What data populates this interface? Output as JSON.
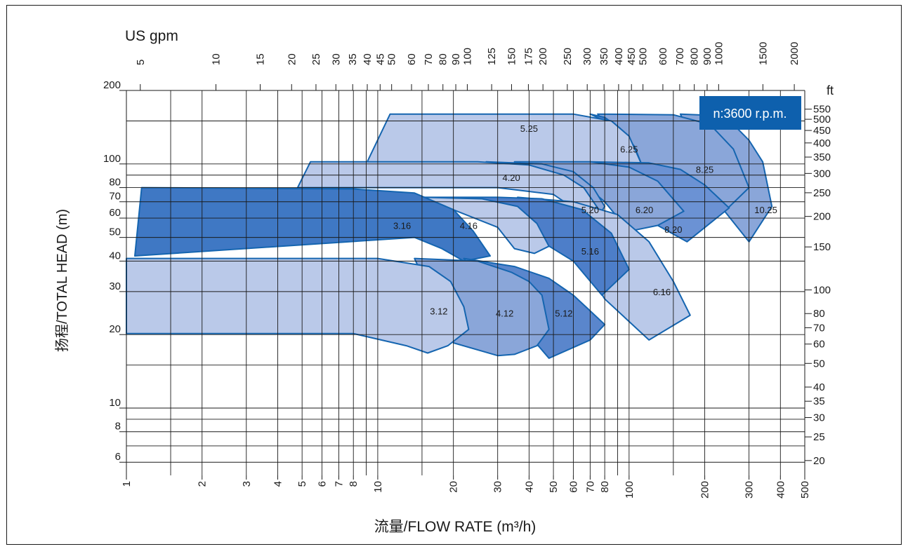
{
  "chart_data": {
    "type": "area",
    "xlabel": "流量/FLOW RATE (m³/h)",
    "ylabel": "扬程/TOTAL HEAD (m)",
    "x_scale": "log",
    "y_scale": "log",
    "xlim": [
      1,
      500
    ],
    "ylim": [
      5.3,
      200
    ],
    "x_ticks": [
      "1",
      "2",
      "3",
      "4",
      "5",
      "6",
      "7",
      "8",
      "10",
      "20",
      "30",
      "40",
      "50",
      "60",
      "70",
      "80",
      "100",
      "200",
      "300",
      "400",
      "500"
    ],
    "y_ticks": [
      "6",
      "8",
      "10",
      "20",
      "30",
      "40",
      "50",
      "60",
      "70",
      "80",
      "100",
      "200"
    ],
    "top_axis": {
      "label": "US gpm",
      "ticks": [
        "5",
        "10",
        "15",
        "20",
        "25",
        "30",
        "35",
        "40",
        "45",
        "50",
        "60",
        "70",
        "80",
        "90",
        "100",
        "125",
        "150",
        "175",
        "200",
        "250",
        "300",
        "350",
        "400",
        "450",
        "500",
        "600",
        "700",
        "800",
        "900",
        "1000",
        "1500",
        "2000"
      ]
    },
    "right_axis": {
      "label": "ft",
      "ticks": [
        "550",
        "500",
        "450",
        "400",
        "350",
        "300",
        "250",
        "200",
        "150",
        "100",
        "80",
        "70",
        "60",
        "50",
        "40",
        "35",
        "30",
        "25",
        "20"
      ]
    },
    "badge": "n:3600 r.p.m.",
    "grid": true,
    "series": [
      {
        "name": "10.25",
        "label_at": [
          350,
          65
        ],
        "color": "#8aa6d9",
        "outline": [
          [
            160,
            160
          ],
          [
            215,
            158
          ],
          [
            260,
            145
          ],
          [
            300,
            125
          ],
          [
            340,
            102
          ],
          [
            370,
            67
          ],
          [
            300,
            48
          ],
          [
            240,
            64
          ]
        ]
      },
      {
        "name": "8.25",
        "label_at": [
          200,
          95
        ],
        "color": "#8aa6d9",
        "outline": [
          [
            75,
            160
          ],
          [
            150,
            159
          ],
          [
            210,
            145
          ],
          [
            260,
            115
          ],
          [
            300,
            80
          ],
          [
            240,
            64
          ],
          [
            185,
            55
          ],
          [
            140,
            75
          ],
          [
            110,
            100
          ],
          [
            90,
            125
          ]
        ]
      },
      {
        "name": "6.25",
        "label_at": [
          100,
          115
        ],
        "color": "#4d7ec9",
        "outline": [
          [
            70,
            160
          ],
          [
            80,
            155
          ],
          [
            92,
            140
          ],
          [
            105,
            118
          ],
          [
            112,
            100
          ],
          [
            102,
            92
          ],
          [
            95,
            105
          ],
          [
            80,
            150
          ]
        ]
      },
      {
        "name": "5.25",
        "label_at": [
          40,
          140
        ],
        "color": "#bac9e9",
        "outline": [
          [
            11.2,
            160
          ],
          [
            60,
            160
          ],
          [
            85,
            150
          ],
          [
            100,
            130
          ],
          [
            112,
            100
          ],
          [
            80,
            100
          ],
          [
            60,
            100
          ],
          [
            9,
            100
          ]
        ]
      },
      {
        "name": "8.20",
        "label_at": [
          150,
          54
        ],
        "color": "#6b92d4",
        "outline": [
          [
            70,
            102
          ],
          [
            120,
            101
          ],
          [
            160,
            95
          ],
          [
            200,
            82
          ],
          [
            250,
            66
          ],
          [
            170,
            48
          ],
          [
            130,
            56
          ],
          [
            110,
            70
          ]
        ]
      },
      {
        "name": "6.20",
        "label_at": [
          115,
          65
        ],
        "color": "#8aa6d9",
        "outline": [
          [
            35,
            102
          ],
          [
            70,
            102
          ],
          [
            100,
            97
          ],
          [
            130,
            85
          ],
          [
            165,
            64
          ],
          [
            130,
            56
          ],
          [
            100,
            53
          ],
          [
            80,
            70
          ],
          [
            60,
            90
          ]
        ]
      },
      {
        "name": "5.20",
        "label_at": [
          70,
          65
        ],
        "color": "#8aa6d9",
        "outline": [
          [
            27,
            102
          ],
          [
            45,
            100
          ],
          [
            60,
            93
          ],
          [
            72,
            80
          ],
          [
            80,
            67
          ],
          [
            75,
            60
          ],
          [
            68,
            63
          ],
          [
            60,
            78
          ],
          [
            50,
            92
          ]
        ]
      },
      {
        "name": "4.20",
        "label_at": [
          34,
          88
        ],
        "color": "#bac9e9",
        "outline": [
          [
            5.4,
            102
          ],
          [
            25,
            102
          ],
          [
            40,
            99
          ],
          [
            55,
            90
          ],
          [
            66,
            80
          ],
          [
            75,
            66
          ],
          [
            65,
            60
          ],
          [
            60,
            66
          ],
          [
            50,
            75
          ],
          [
            30,
            80
          ],
          [
            4.8,
            80
          ]
        ]
      },
      {
        "name": "6.16",
        "label_at": [
          135,
          30
        ],
        "color": "#bac9e9",
        "outline": [
          [
            36,
            73
          ],
          [
            60,
            70
          ],
          [
            90,
            62
          ],
          [
            120,
            48
          ],
          [
            150,
            33
          ],
          [
            175,
            24
          ],
          [
            120,
            19
          ],
          [
            80,
            28
          ],
          [
            60,
            45
          ],
          [
            45,
            60
          ]
        ]
      },
      {
        "name": "5.16",
        "label_at": [
          70,
          44
        ],
        "color": "#4d7ec9",
        "outline": [
          [
            15,
            73
          ],
          [
            30,
            73
          ],
          [
            45,
            72
          ],
          [
            65,
            65
          ],
          [
            85,
            52
          ],
          [
            100,
            37
          ],
          [
            78,
            29
          ],
          [
            60,
            40
          ],
          [
            45,
            48
          ]
        ]
      },
      {
        "name": "4.16",
        "label_at": [
          23,
          56
        ],
        "color": "#bac9e9",
        "outline": [
          [
            15,
            73
          ],
          [
            26,
            72
          ],
          [
            36,
            67
          ],
          [
            43,
            57
          ],
          [
            48,
            46
          ],
          [
            42,
            43
          ],
          [
            35,
            45
          ],
          [
            30,
            55
          ]
        ]
      },
      {
        "name": "3.16",
        "label_at": [
          12.5,
          56
        ],
        "color": "#3f78c4",
        "outline": [
          [
            1.15,
            80
          ],
          [
            8,
            79
          ],
          [
            14,
            76
          ],
          [
            20,
            65
          ],
          [
            24,
            53
          ],
          [
            28,
            42
          ],
          [
            22,
            40
          ],
          [
            18,
            45
          ],
          [
            14,
            50
          ],
          [
            1.08,
            42
          ]
        ]
      },
      {
        "name": "5.12",
        "label_at": [
          55,
          24.5
        ],
        "color": "#5a86cc",
        "outline": [
          [
            22,
            41
          ],
          [
            35,
            38
          ],
          [
            48,
            34
          ],
          [
            60,
            29
          ],
          [
            70,
            25
          ],
          [
            80,
            22
          ],
          [
            70,
            19
          ],
          [
            48,
            16
          ]
        ]
      },
      {
        "name": "4.12",
        "label_at": [
          32,
          24.5
        ],
        "color": "#8aa6d9",
        "outline": [
          [
            14,
            41
          ],
          [
            25,
            40
          ],
          [
            34,
            36
          ],
          [
            40,
            33
          ],
          [
            45,
            29
          ],
          [
            48,
            21
          ],
          [
            43,
            18
          ],
          [
            35,
            16.6
          ],
          [
            30,
            16.4
          ],
          [
            20,
            18.5
          ]
        ]
      },
      {
        "name": "3.12",
        "label_at": [
          17.5,
          25
        ],
        "color": "#bac9e9",
        "outline": [
          [
            1,
            41
          ],
          [
            10,
            41
          ],
          [
            16,
            38
          ],
          [
            19.5,
            33
          ],
          [
            22,
            26
          ],
          [
            23,
            21
          ],
          [
            19,
            18
          ],
          [
            15.8,
            16.8
          ],
          [
            13,
            18
          ],
          [
            8,
            20.2
          ],
          [
            1,
            20.2
          ]
        ]
      }
    ]
  }
}
